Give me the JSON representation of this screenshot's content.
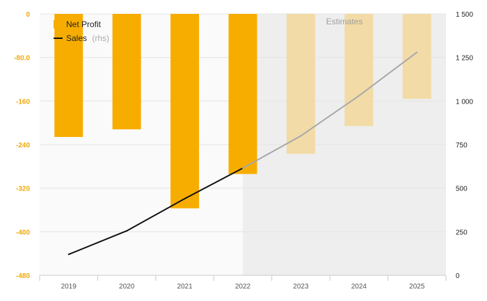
{
  "chart_data": {
    "type": "bar",
    "categories": [
      "2019",
      "2020",
      "2021",
      "2022",
      "2023",
      "2024",
      "2025"
    ],
    "series": [
      {
        "name": "Net Profit",
        "type": "bar",
        "axis": "left",
        "values": [
          -226,
          -212,
          -357,
          -294,
          -257,
          -206,
          -156
        ],
        "estimated": [
          false,
          false,
          false,
          false,
          true,
          true,
          true
        ],
        "color": "#f7ad00",
        "estimate_color": "#f2dba6"
      },
      {
        "name": "Sales",
        "name_suffix": "(rhs)",
        "type": "line",
        "axis": "right",
        "values": [
          120,
          255,
          440,
          615,
          800,
          1030,
          1280
        ],
        "estimated": [
          false,
          false,
          false,
          false,
          true,
          true,
          true
        ],
        "color": "#111111",
        "estimate_color": "#a8a8a8"
      }
    ],
    "y_left": {
      "min": -480,
      "max": 0,
      "ticks": [
        0,
        -80,
        -160,
        -240,
        -320,
        -400,
        -480
      ],
      "tick_labels": [
        "0",
        "-80.0",
        "-160",
        "-240",
        "-320",
        "-400",
        "-480"
      ]
    },
    "y_right": {
      "min": 0,
      "max": 1500,
      "ticks": [
        0,
        250,
        500,
        750,
        1000,
        1250,
        1500
      ],
      "tick_labels": [
        "0",
        "250",
        "500",
        "750",
        "1 000",
        "1 250",
        "1 500"
      ]
    },
    "estimate_region_label": "Estimates",
    "estimate_region_start_category": "2022",
    "grid": true,
    "legend_position": "top-left"
  }
}
